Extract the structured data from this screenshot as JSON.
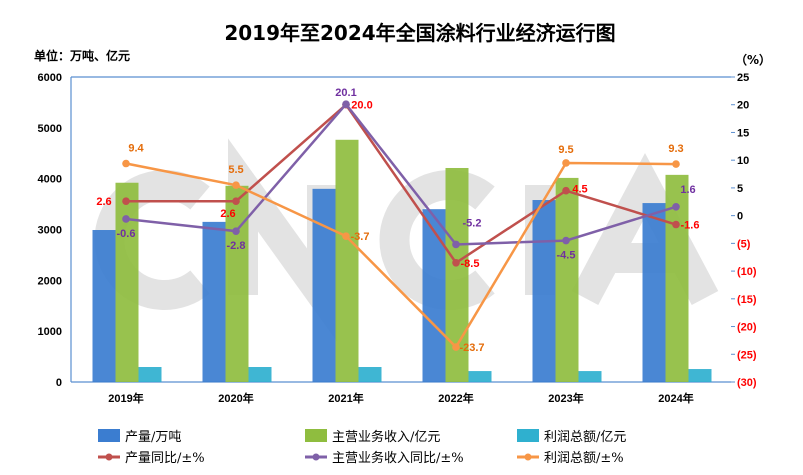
{
  "chart_data": {
    "type": "bar+line",
    "title": "2019年至2024年全国涂料行业经济运行图",
    "left_unit_label": "单位：万吨、亿元",
    "right_unit_label": "（%）",
    "watermark": "CNCIA",
    "categories": [
      "2019年",
      "2020年",
      "2021年",
      "2022年",
      "2023年",
      "2024年"
    ],
    "left_axis": {
      "min": 0,
      "max": 6000,
      "ticks": [
        "0",
        "1000",
        "2000",
        "3000",
        "4000",
        "5000",
        "6000"
      ]
    },
    "right_axis": {
      "min": -30,
      "max": 25,
      "ticks": [
        "(30)",
        "(25)",
        "(20)",
        "(15)",
        "(10)",
        "(5)",
        "0",
        "5",
        "10",
        "15",
        "20",
        "25"
      ],
      "tick_values": [
        -30,
        -25,
        -20,
        -15,
        -10,
        -5,
        0,
        5,
        10,
        15,
        20,
        25
      ]
    },
    "bar_series": [
      {
        "name": "产量/万吨",
        "color": "#3b7dd0",
        "values": [
          2990,
          3150,
          3800,
          3400,
          3580,
          3520
        ]
      },
      {
        "name": "主营业务收入/亿元",
        "color": "#8fbd3f",
        "values": [
          3920,
          3860,
          4765,
          4210,
          4015,
          4075
        ]
      },
      {
        "name": "利润总额/亿元",
        "color": "#2fb0cf",
        "values": [
          295,
          295,
          295,
          215,
          215,
          255
        ]
      }
    ],
    "line_series": [
      {
        "name": "产量同比/±%",
        "color": "#c0504d",
        "label_color": "#ff0000",
        "values": [
          2.6,
          2.6,
          20.0,
          -8.5,
          4.5,
          -1.6
        ],
        "labels": [
          "2.6",
          "2.6",
          "20.0",
          "-8.5",
          "4.5",
          "-1.6"
        ]
      },
      {
        "name": "主营业务收入同比/±%",
        "color": "#7f60a8",
        "label_color": "#7030a0",
        "values": [
          -0.6,
          -2.8,
          20.1,
          -5.2,
          -4.5,
          1.6
        ],
        "labels": [
          "-0.6",
          "-2.8",
          "20.1",
          "-5.2",
          "-4.5",
          "1.6"
        ]
      },
      {
        "name": "利润总额/±%",
        "color": "#f79646",
        "label_color": "#e46c0a",
        "values": [
          9.4,
          5.5,
          -3.7,
          -23.7,
          9.5,
          9.3
        ],
        "labels": [
          "9.4",
          "5.5",
          "-3.7",
          "-23.7",
          "9.5",
          "9.3"
        ]
      }
    ],
    "legend_position": "bottom",
    "grid": false
  }
}
